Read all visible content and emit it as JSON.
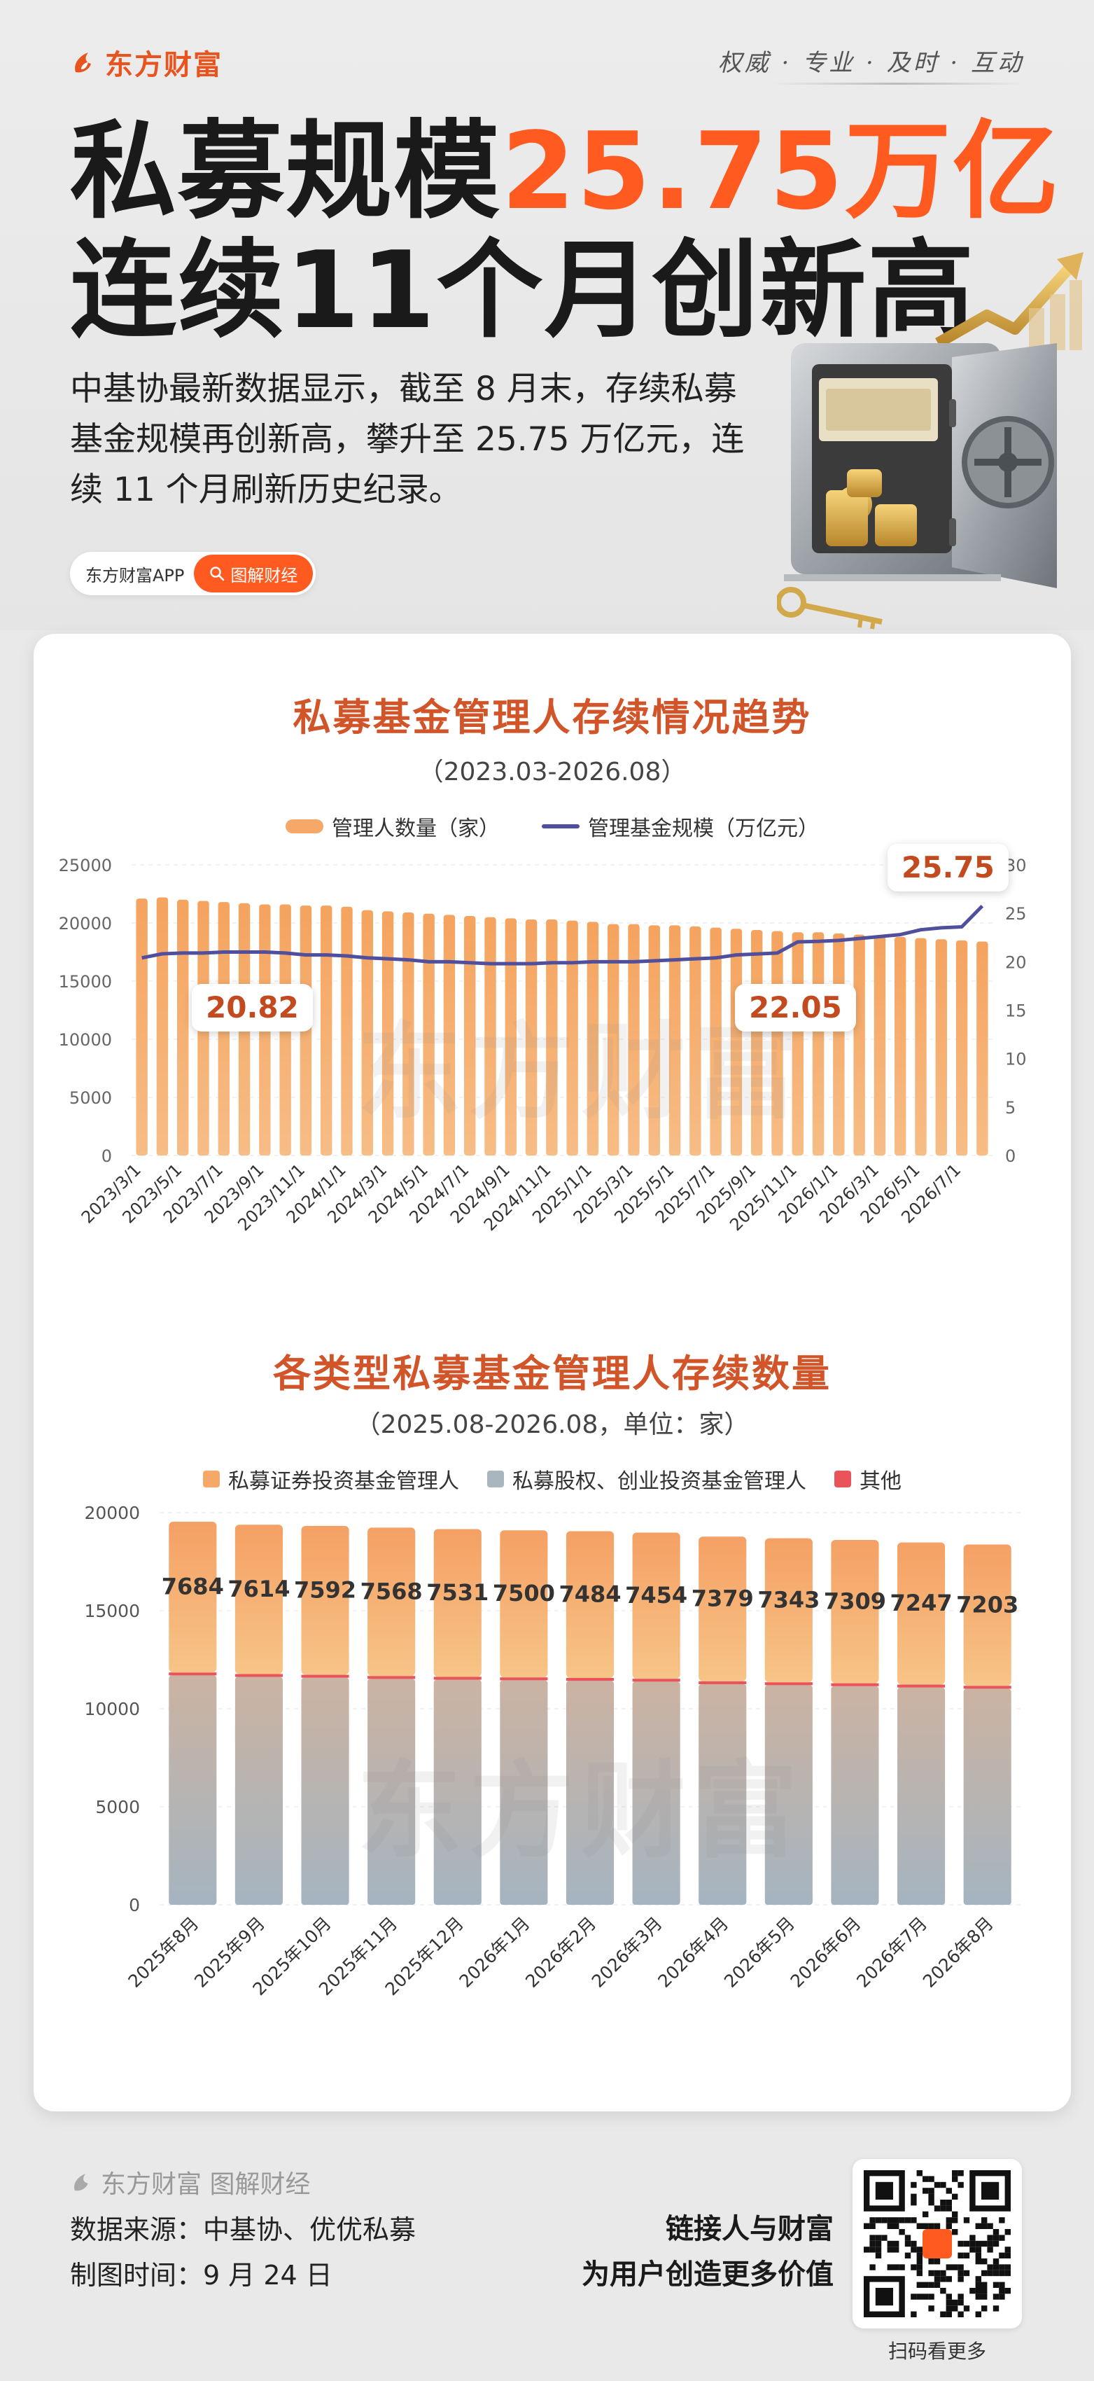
{
  "brand": {
    "name": "东方财富",
    "slogan": "权威 · 专业 · 及时 · 互动"
  },
  "headline": {
    "line1_prefix": "私募规模",
    "line1_accent": "25.75万亿",
    "line2": "连续11个月创新高"
  },
  "intro": "中基协最新数据显示，截至 8 月末，存续私募基金规模再创新高，攀升至 25.75 万亿元，连续 11 个月刷新历史纪录。",
  "pill": {
    "app": "东方财富APP",
    "tag": "图解财经"
  },
  "watermark": "东方财富",
  "colors": {
    "accent": "#ff5a1f",
    "bar": "#f6a868",
    "line": "#4f4f9e",
    "equity": "#a9b5bf",
    "securities": "#f6a868",
    "other": "#e8545a"
  },
  "chart_data": [
    {
      "type": "bar",
      "title": "私募基金管理人存续情况趋势",
      "subtitle": "（2023.03-2026.08）",
      "legend": [
        "管理人数量（家）",
        "管理基金规模（万亿元）"
      ],
      "legend_position": "top",
      "grid": true,
      "categories": [
        "2023/3/1",
        "2023/4/1",
        "2023/5/1",
        "2023/6/1",
        "2023/7/1",
        "2023/8/1",
        "2023/9/1",
        "2023/10/1",
        "2023/11/1",
        "2023/12/1",
        "2024/1/1",
        "2024/2/1",
        "2024/3/1",
        "2024/4/1",
        "2024/5/1",
        "2024/6/1",
        "2024/7/1",
        "2024/8/1",
        "2024/9/1",
        "2024/10/1",
        "2024/11/1",
        "2024/12/1",
        "2025/1/1",
        "2025/2/1",
        "2025/3/1",
        "2025/4/1",
        "2025/5/1",
        "2025/6/1",
        "2025/7/1",
        "2025/8/1",
        "2025/9/1",
        "2025/10/1",
        "2025/11/1",
        "2025/12/1",
        "2026/1/1",
        "2026/2/1",
        "2026/3/1",
        "2026/4/1",
        "2026/5/1",
        "2026/6/1",
        "2026/7/1",
        "2026/8/1"
      ],
      "tick_labels": [
        "2023/3/1",
        "2023/5/1",
        "2023/7/1",
        "2023/9/1",
        "2023/11/1",
        "2024/1/1",
        "2024/3/1",
        "2024/5/1",
        "2024/7/1",
        "2024/9/1",
        "2024/11/1",
        "2025/1/1",
        "2025/3/1",
        "2025/5/1",
        "2025/7/1",
        "2025/9/1",
        "2025/11/1",
        "2026/1/1",
        "2026/3/1",
        "2026/5/1",
        "2026/7/1"
      ],
      "series": [
        {
          "name": "管理人数量（家）",
          "axis": "left",
          "values": [
            22100,
            22200,
            22000,
            21900,
            21800,
            21700,
            21600,
            21600,
            21500,
            21500,
            21400,
            21100,
            21000,
            20900,
            20800,
            20700,
            20600,
            20500,
            20400,
            20300,
            20300,
            20200,
            20100,
            19900,
            19900,
            19800,
            19800,
            19700,
            19600,
            19500,
            19400,
            19300,
            19200,
            19200,
            19100,
            19000,
            18900,
            18800,
            18700,
            18600,
            18500,
            18400
          ]
        },
        {
          "name": "管理基金规模（万亿元）",
          "axis": "right",
          "values": [
            20.4,
            20.82,
            20.9,
            20.9,
            21.0,
            21.0,
            21.0,
            20.9,
            20.7,
            20.7,
            20.6,
            20.4,
            20.3,
            20.2,
            20.0,
            20.0,
            19.9,
            19.8,
            19.8,
            19.8,
            19.9,
            19.9,
            20.0,
            20.0,
            20.0,
            20.1,
            20.2,
            20.3,
            20.4,
            20.7,
            20.8,
            20.9,
            22.05,
            22.1,
            22.2,
            22.4,
            22.6,
            22.8,
            23.3,
            23.5,
            23.6,
            25.75
          ]
        }
      ],
      "ylim_left": [
        0,
        25000
      ],
      "yticks_left": [
        0,
        5000,
        10000,
        15000,
        20000,
        25000
      ],
      "ylim_right": [
        0,
        30
      ],
      "yticks_right": [
        0,
        5,
        10,
        15,
        20,
        25,
        30
      ],
      "annotations": [
        "20.82",
        "22.05",
        "25.75"
      ]
    },
    {
      "type": "bar",
      "title": "各类型私募基金管理人存续数量",
      "subtitle": "（2025.08-2026.08，单位：家）",
      "stacked": true,
      "legend": [
        "私募证券投资基金管理人",
        "私募股权、创业投资基金管理人",
        "其他"
      ],
      "legend_position": "top",
      "grid": true,
      "categories": [
        "2025年8月",
        "2025年9月",
        "2025年10月",
        "2025年11月",
        "2025年12月",
        "2026年1月",
        "2026年2月",
        "2026年3月",
        "2026年4月",
        "2026年5月",
        "2026年6月",
        "2026年7月",
        "2026年8月"
      ],
      "series": [
        {
          "name": "私募股权、创业投资基金管理人",
          "values": [
            11700,
            11620,
            11580,
            11520,
            11480,
            11450,
            11420,
            11380,
            11250,
            11200,
            11150,
            11080,
            11020
          ]
        },
        {
          "name": "其他",
          "values": [
            150,
            150,
            150,
            150,
            150,
            150,
            150,
            150,
            150,
            150,
            150,
            150,
            150
          ]
        },
        {
          "name": "私募证券投资基金管理人",
          "values": [
            7684,
            7614,
            7592,
            7568,
            7531,
            7500,
            7484,
            7454,
            7379,
            7343,
            7309,
            7247,
            7203
          ]
        }
      ],
      "data_labels": [
        "7684",
        "7614",
        "7592",
        "7568",
        "7531",
        "7500",
        "7484",
        "7454",
        "7379",
        "7343",
        "7309",
        "7247",
        "7203"
      ],
      "ylim": [
        0,
        20000
      ],
      "yticks": [
        0,
        5000,
        10000,
        15000,
        20000
      ]
    }
  ],
  "footer": {
    "brand": "东方财富 图解财经",
    "source": "数据来源：中基协、优优私募",
    "time": "制图时间：9 月 24 日",
    "slogan1": "链接人与财富",
    "slogan2": "为用户创造更多价值",
    "qr_caption": "扫码看更多"
  }
}
